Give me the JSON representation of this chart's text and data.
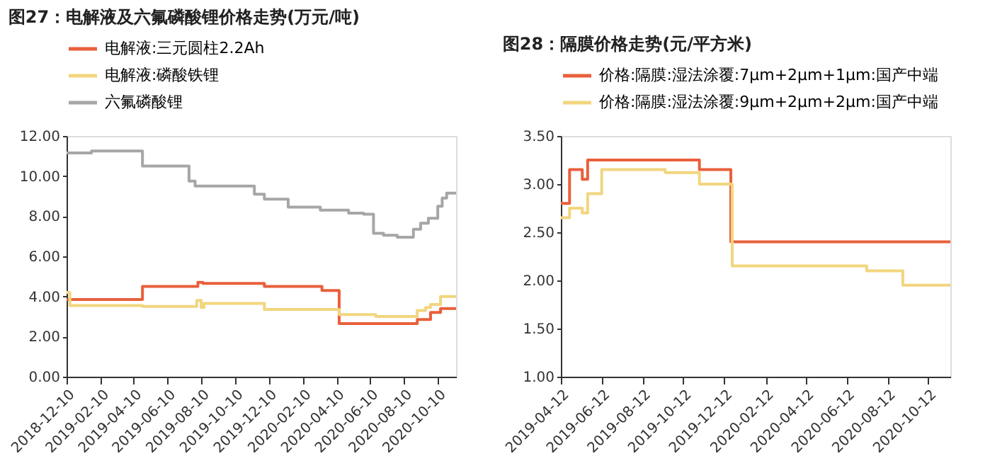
{
  "chart_data": [
    {
      "type": "step",
      "title": "图27：电解液及六氟磷酸锂价格走势(万元/吨)",
      "legend": "top",
      "grid": false,
      "line_style": "solid",
      "marker": "none",
      "xlim": [
        "2018-12-10",
        "2020-11-12"
      ],
      "xticks": [
        "2018-12-10",
        "2019-02-10",
        "2019-04-10",
        "2019-06-10",
        "2019-08-10",
        "2019-10-10",
        "2019-12-10",
        "2020-02-10",
        "2020-04-10",
        "2020-06-10",
        "2020-08-10",
        "2020-10-10"
      ],
      "ylim": [
        0,
        12
      ],
      "yticks": [
        {
          "value": 0,
          "label": "0.00"
        },
        {
          "value": 2,
          "label": "2.00"
        },
        {
          "value": 4,
          "label": "4.00"
        },
        {
          "value": 6,
          "label": "6.00"
        },
        {
          "value": 8,
          "label": "8.00"
        },
        {
          "value": 10,
          "label": "10.00"
        },
        {
          "value": 12,
          "label": "12.00"
        }
      ],
      "series": [
        {
          "name": "电解液:三元圆柱2.2Ah",
          "color": "#e8603c",
          "x": [
            "2018-12-10",
            "2019-04-26",
            "2019-08-04",
            "2019-08-13",
            "2019-12-02",
            "2020-03-15",
            "2020-04-15",
            "2020-09-03",
            "2020-09-27",
            "2020-10-15",
            "2020-11-12"
          ],
          "values": [
            3.85,
            4.5,
            4.7,
            4.65,
            4.5,
            4.3,
            2.65,
            2.85,
            3.2,
            3.4,
            3.4
          ]
        },
        {
          "name": "电解液:磷酸铁锂",
          "color": "#f2d57e",
          "x": [
            "2018-12-10",
            "2018-12-16",
            "2019-04-26",
            "2019-08-02",
            "2019-08-10",
            "2019-08-15",
            "2019-12-02",
            "2020-04-15",
            "2020-06-20",
            "2020-09-03",
            "2020-09-18",
            "2020-09-27",
            "2020-10-15",
            "2020-11-12"
          ],
          "values": [
            4.2,
            3.55,
            3.5,
            3.8,
            3.45,
            3.65,
            3.35,
            3.1,
            3.0,
            3.3,
            3.45,
            3.6,
            4.0,
            4.0
          ]
        },
        {
          "name": "六氟磷酸锂",
          "color": "#a6a6a6",
          "x": [
            "2018-12-10",
            "2019-01-24",
            "2019-04-26",
            "2019-07-19",
            "2019-07-30",
            "2019-11-14",
            "2019-12-02",
            "2020-01-14",
            "2020-03-12",
            "2020-05-02",
            "2020-05-29",
            "2020-06-16",
            "2020-07-04",
            "2020-07-29",
            "2020-08-27",
            "2020-09-09",
            "2020-09-23",
            "2020-10-10",
            "2020-10-18",
            "2020-10-26",
            "2020-11-12"
          ],
          "values": [
            11.15,
            11.25,
            10.5,
            9.75,
            9.5,
            9.1,
            8.85,
            8.45,
            8.3,
            8.15,
            8.1,
            7.15,
            7.05,
            6.95,
            7.35,
            7.65,
            7.9,
            8.5,
            8.9,
            9.15,
            9.15
          ]
        }
      ]
    },
    {
      "type": "step",
      "title": "图28：隔膜价格走势(元/平方米)",
      "legend": "top",
      "grid": false,
      "line_style": "solid",
      "marker": "none",
      "xlim": [
        "2019-04-12",
        "2020-11-14"
      ],
      "xticks": [
        "2019-04-12",
        "2019-06-12",
        "2019-08-12",
        "2019-10-12",
        "2019-12-12",
        "2020-02-12",
        "2020-04-12",
        "2020-06-12",
        "2020-08-12",
        "2020-10-12"
      ],
      "ylim": [
        1,
        3.5
      ],
      "yticks": [
        {
          "value": 1,
          "label": "1.00"
        },
        {
          "value": 1.5,
          "label": "1.50"
        },
        {
          "value": 2,
          "label": "2.00"
        },
        {
          "value": 2.5,
          "label": "2.50"
        },
        {
          "value": 3,
          "label": "3.00"
        },
        {
          "value": 3.5,
          "label": "3.50"
        }
      ],
      "series": [
        {
          "name": "价格:隔膜:湿法涂覆:7μm+2μm+1μm:国产中端",
          "color": "#e8603c",
          "x": [
            "2019-04-12",
            "2019-04-25",
            "2019-05-14",
            "2019-05-22",
            "2019-11-05",
            "2019-12-22",
            "2020-11-14"
          ],
          "values": [
            2.8,
            3.15,
            3.05,
            3.25,
            3.15,
            2.4,
            2.4
          ]
        },
        {
          "name": "价格:隔膜:湿法涂覆:9μm+2μm+2μm:国产中端",
          "color": "#f2d57e",
          "x": [
            "2019-04-12",
            "2019-04-25",
            "2019-05-14",
            "2019-05-22",
            "2019-06-12",
            "2019-09-15",
            "2019-11-05",
            "2019-12-24",
            "2020-07-12",
            "2020-09-04",
            "2020-11-14"
          ],
          "values": [
            2.65,
            2.75,
            2.7,
            2.9,
            3.15,
            3.12,
            3.0,
            2.15,
            2.1,
            1.95,
            1.95
          ]
        }
      ]
    }
  ]
}
